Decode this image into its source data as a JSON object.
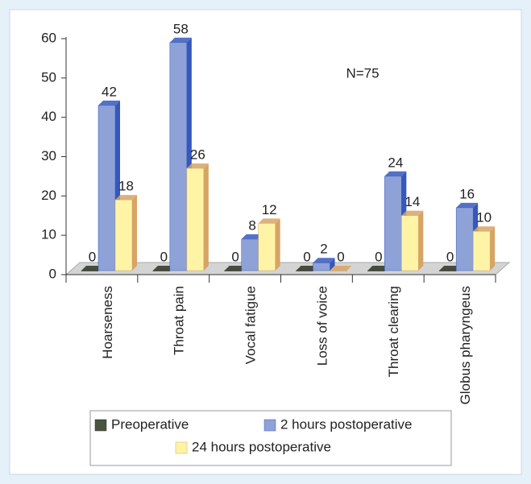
{
  "chart_data": {
    "type": "bar3d",
    "annotation": "N=75",
    "categories": [
      "Hoarseness",
      "Throat pain",
      "Vocal fatigue",
      "Loss of voice",
      "Throat clearing",
      "Globus pharyngeus"
    ],
    "series": [
      {
        "name": "Preoperative",
        "color": "#4a5242",
        "side": "#2e3328",
        "values": [
          0,
          0,
          0,
          0,
          0,
          0
        ]
      },
      {
        "name": "2 hours postoperative",
        "color": "#8ea2d8",
        "side": "#3558bd",
        "values": [
          42,
          58,
          8,
          2,
          24,
          16
        ]
      },
      {
        "name": "24 hours postoperative",
        "color": "#fff4a6",
        "side": "#d6a465",
        "values": [
          18,
          26,
          12,
          0,
          14,
          10
        ]
      }
    ],
    "ylim": [
      0,
      60
    ],
    "yticks": [
      0,
      10,
      20,
      30,
      40,
      50,
      60
    ]
  }
}
